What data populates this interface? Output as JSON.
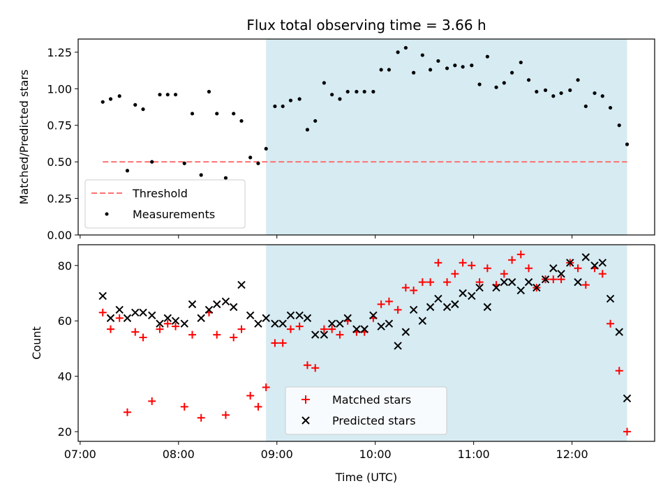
{
  "chart_data": {
    "type": "scatter",
    "title": "Flux total observing time = 3.66 h",
    "xlabel": "Time (UTC)",
    "x_unit": "hours UTC",
    "xlim": [
      6.98,
      12.84
    ],
    "x_ticks": [
      {
        "value": 7.0,
        "label": "07:00"
      },
      {
        "value": 8.0,
        "label": "08:00"
      },
      {
        "value": 9.0,
        "label": "09:00"
      },
      {
        "value": 10.0,
        "label": "10:00"
      },
      {
        "value": 11.0,
        "label": "11:00"
      },
      {
        "value": 12.0,
        "label": "12:00"
      }
    ],
    "observing_window": {
      "start": 8.89,
      "end": 12.56,
      "color": "#add8e6"
    },
    "x": [
      7.23,
      7.31,
      7.4,
      7.48,
      7.56,
      7.64,
      7.73,
      7.81,
      7.89,
      7.97,
      8.06,
      8.14,
      8.23,
      8.31,
      8.39,
      8.48,
      8.56,
      8.64,
      8.73,
      8.81,
      8.89,
      8.98,
      9.06,
      9.14,
      9.23,
      9.31,
      9.39,
      9.48,
      9.56,
      9.64,
      9.72,
      9.81,
      9.89,
      9.98,
      10.06,
      10.14,
      10.23,
      10.31,
      10.39,
      10.48,
      10.56,
      10.64,
      10.73,
      10.81,
      10.89,
      10.98,
      11.06,
      11.14,
      11.23,
      11.31,
      11.39,
      11.48,
      11.56,
      11.64,
      11.73,
      11.81,
      11.89,
      11.98,
      12.06,
      12.14,
      12.23,
      12.31,
      12.39,
      12.48,
      12.56
    ],
    "panels": [
      {
        "ylabel": "Matched/Predicted stars",
        "ylim": [
          0.0,
          1.34
        ],
        "y_ticks": [
          {
            "value": 0.0,
            "label": "0.00"
          },
          {
            "value": 0.25,
            "label": "0.25"
          },
          {
            "value": 0.5,
            "label": "0.50"
          },
          {
            "value": 0.75,
            "label": "0.75"
          },
          {
            "value": 1.0,
            "label": "1.00"
          },
          {
            "value": 1.25,
            "label": "1.25"
          }
        ],
        "threshold": {
          "name": "Threshold",
          "value": 0.5,
          "x_start": 7.23,
          "x_end": 12.56,
          "color": "#ff7070"
        },
        "series": [
          {
            "name": "Measurements",
            "marker": "dot",
            "color": "#000000",
            "values": [
              0.91,
              0.93,
              0.95,
              0.44,
              0.89,
              0.86,
              0.5,
              0.96,
              0.96,
              0.96,
              0.49,
              0.83,
              0.41,
              0.98,
              0.83,
              0.39,
              0.83,
              0.78,
              0.53,
              0.49,
              0.59,
              0.88,
              0.88,
              0.92,
              0.93,
              0.72,
              0.78,
              1.04,
              0.96,
              0.93,
              0.98,
              0.98,
              0.98,
              0.98,
              1.13,
              1.13,
              1.25,
              1.28,
              1.11,
              1.23,
              1.13,
              1.19,
              1.14,
              1.16,
              1.15,
              1.16,
              1.03,
              1.22,
              1.01,
              1.04,
              1.11,
              1.18,
              1.06,
              0.98,
              0.99,
              0.95,
              0.97,
              0.99,
              1.06,
              0.88,
              0.97,
              0.95,
              0.87,
              0.75,
              0.62
            ]
          }
        ],
        "legend": {
          "position": "bottom-left",
          "entries": [
            "Threshold",
            "Measurements"
          ]
        }
      },
      {
        "ylabel": "Count",
        "ylim": [
          16.5,
          87.5
        ],
        "y_ticks": [
          {
            "value": 20,
            "label": "20"
          },
          {
            "value": 40,
            "label": "40"
          },
          {
            "value": 60,
            "label": "60"
          },
          {
            "value": 80,
            "label": "80"
          }
        ],
        "series": [
          {
            "name": "Matched stars",
            "marker": "plus",
            "color": "#ff0000",
            "values": [
              63,
              57,
              61,
              27,
              56,
              54,
              31,
              57,
              59,
              58,
              29,
              55,
              25,
              63,
              55,
              26,
              54,
              57,
              33,
              29,
              36,
              52,
              52,
              57,
              58,
              44,
              43,
              57,
              57,
              55,
              60,
              56,
              56,
              61,
              66,
              67,
              64,
              72,
              71,
              74,
              74,
              81,
              74,
              77,
              81,
              80,
              74,
              79,
              73,
              77,
              82,
              84,
              79,
              72,
              75,
              75,
              75,
              81,
              79,
              73,
              79,
              77,
              59,
              42,
              20
            ]
          },
          {
            "name": "Predicted stars",
            "marker": "x",
            "color": "#000000",
            "values": [
              69,
              61,
              64,
              61,
              63,
              63,
              62,
              59,
              61,
              60,
              59,
              66,
              61,
              64,
              66,
              67,
              65,
              73,
              62,
              59,
              61,
              59,
              59,
              62,
              62,
              61,
              55,
              55,
              59,
              59,
              61,
              57,
              57,
              62,
              58,
              59,
              51,
              56,
              64,
              60,
              65,
              68,
              65,
              66,
              70,
              69,
              72,
              65,
              72,
              74,
              74,
              71,
              74,
              72,
              75,
              79,
              77,
              81,
              74,
              83,
              80,
              81,
              68,
              56,
              32
            ]
          }
        ],
        "legend": {
          "position": "bottom-center",
          "entries": [
            "Matched stars",
            "Predicted stars"
          ]
        }
      }
    ]
  }
}
